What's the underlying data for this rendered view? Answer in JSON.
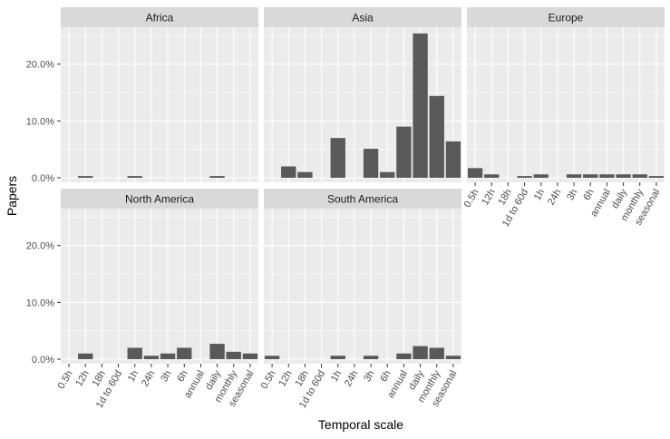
{
  "chart_data": {
    "type": "bar",
    "xlabel": "Temporal scale",
    "ylabel": "Papers",
    "categories": [
      "0.5h",
      "12h",
      "18h",
      "1d to 60d",
      "1h",
      "24h",
      "3h",
      "6h",
      "annual",
      "daily",
      "monthly",
      "seasonal"
    ],
    "ylim": [
      -0.8,
      26.5
    ],
    "y_ticks": [
      0,
      10,
      20
    ],
    "y_tick_labels": [
      "0.0%",
      "10.0%",
      "20.0%"
    ],
    "grid": true,
    "facets": [
      {
        "name": "Africa",
        "values": [
          0,
          0.3,
          0,
          0,
          0.3,
          0,
          0,
          0,
          0,
          0.3,
          0,
          0
        ]
      },
      {
        "name": "Asia",
        "values": [
          0,
          2.0,
          1.0,
          0,
          7.0,
          0,
          5.1,
          1.0,
          9.0,
          25.4,
          14.4,
          6.4
        ]
      },
      {
        "name": "Europe",
        "values": [
          1.7,
          0.6,
          0,
          0.3,
          0.6,
          0,
          0.6,
          0.6,
          0.6,
          0.6,
          0.6,
          0.3
        ]
      },
      {
        "name": "North America",
        "values": [
          0,
          1.0,
          0,
          0,
          2.0,
          0.6,
          1.0,
          2.0,
          0,
          2.7,
          1.3,
          1.0
        ]
      },
      {
        "name": "South America",
        "values": [
          0.6,
          0,
          0,
          0,
          0.6,
          0,
          0.6,
          0,
          1.0,
          2.3,
          2.0,
          0.6
        ]
      }
    ]
  },
  "colors": {
    "bar": "#595959",
    "panel_background": "#ebebeb",
    "grid": "#ffffff",
    "strip_background": "#d9d9d9"
  }
}
